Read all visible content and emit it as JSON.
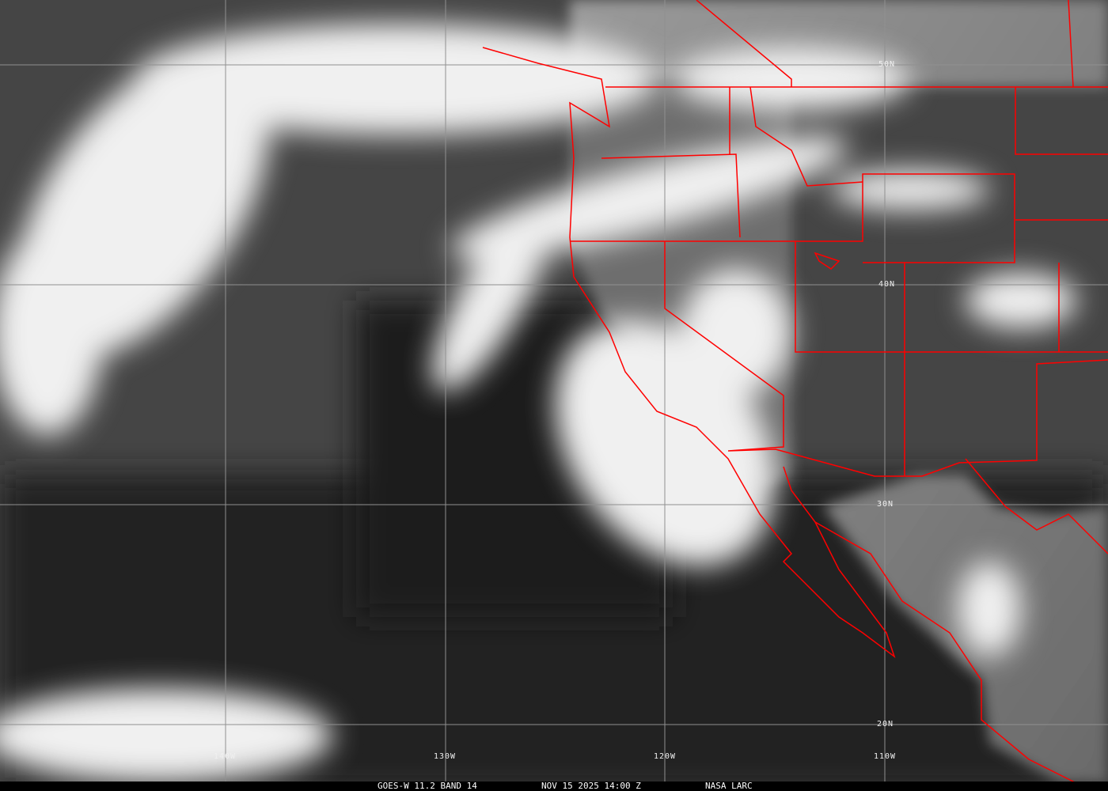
{
  "title": "GOES-W 11.2 BAND 14",
  "timestamp": "NOV 15 2025 14:00 Z",
  "source": "NASA LARC",
  "grid": {
    "latitudes": [
      "50N",
      "40N",
      "30N",
      "20N"
    ],
    "longitudes": [
      "140W",
      "130W",
      "120W",
      "110W"
    ]
  },
  "colors": {
    "borders": "#ff0000",
    "grid": "#909090",
    "ocean": "#2a2a2a",
    "cloud": "#f4f4f4"
  }
}
